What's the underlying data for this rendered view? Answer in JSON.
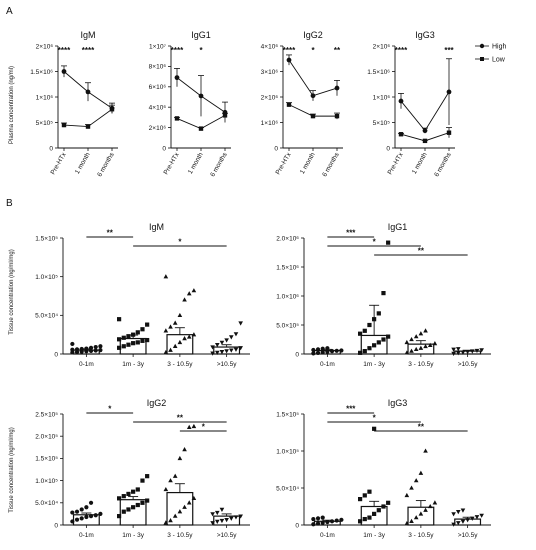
{
  "figure": {
    "panel_a": "A",
    "panel_b": "B",
    "legend": {
      "entries": [
        {
          "label": "High",
          "marker": "circle"
        },
        {
          "label": "Low",
          "marker": "square"
        }
      ]
    },
    "ylabel_top": "Plasma concentration (ng/ml)",
    "ylabel_bottom": "Tissue concentration (ng/ml/mg)"
  },
  "chart_data": [
    {
      "type": "line",
      "title": "IgM",
      "xlabel": "",
      "ylabel": "Plasma concentration (ng/ml)",
      "categories": [
        "Pre-HTx",
        "1 month",
        "6 months"
      ],
      "ylim": [
        0,
        2000000
      ],
      "yticks": [
        "0",
        "5×10⁵",
        "1×10⁶",
        "1.5×10⁶",
        "2×10⁶"
      ],
      "series": [
        {
          "name": "High",
          "values": [
            1500000,
            1100000,
            780000
          ],
          "errors": [
            110000,
            180000,
            100000
          ]
        },
        {
          "name": "Low",
          "values": [
            450000,
            420000,
            760000
          ],
          "errors": [
            40000,
            40000,
            80000
          ]
        }
      ],
      "significance": [
        "****",
        "****",
        ""
      ]
    },
    {
      "type": "line",
      "title": "IgG1",
      "xlabel": "",
      "ylabel": "Plasma concentration (ng/ml)",
      "categories": [
        "Pre-HTx",
        "1 month",
        "6 months"
      ],
      "ylim": [
        0,
        10000000
      ],
      "yticks": [
        "0",
        "2×10⁶",
        "4×10⁶",
        "6×10⁶",
        "8×10⁶",
        "1×10⁷"
      ],
      "series": [
        {
          "name": "High",
          "values": [
            6900000,
            5100000,
            3500000
          ],
          "errors": [
            900000,
            2000000,
            1000000
          ]
        },
        {
          "name": "Low",
          "values": [
            2900000,
            1900000,
            3200000
          ],
          "errors": [
            100000,
            100000,
            200000
          ]
        }
      ],
      "significance": [
        "****",
        "*",
        ""
      ]
    },
    {
      "type": "line",
      "title": "IgG2",
      "xlabel": "",
      "ylabel": "Plasma concentration (ng/ml)",
      "categories": [
        "Pre-HTx",
        "1 month",
        "6 months"
      ],
      "ylim": [
        0,
        4000000
      ],
      "yticks": [
        "0",
        "1×10⁶",
        "2×10⁶",
        "3×10⁶",
        "4×10⁶"
      ],
      "series": [
        {
          "name": "High",
          "values": [
            3450000,
            2050000,
            2350000
          ],
          "errors": [
            200000,
            200000,
            300000
          ]
        },
        {
          "name": "Low",
          "values": [
            1700000,
            1250000,
            1250000
          ],
          "errors": [
            80000,
            80000,
            120000
          ]
        }
      ],
      "significance": [
        "****",
        "*",
        "**"
      ]
    },
    {
      "type": "line",
      "title": "IgG3",
      "xlabel": "",
      "ylabel": "Plasma concentration (ng/ml)",
      "categories": [
        "Pre-HTx",
        "1 month",
        "6 months"
      ],
      "ylim": [
        0,
        2000000
      ],
      "yticks": [
        "0",
        "5×10⁵",
        "1×10⁶",
        "1.5×10⁶",
        "2×10⁶"
      ],
      "series": [
        {
          "name": "High",
          "values": [
            920000,
            340000,
            1100000
          ],
          "errors": [
            150000,
            50000,
            650000
          ]
        },
        {
          "name": "Low",
          "values": [
            270000,
            140000,
            300000
          ],
          "errors": [
            15000,
            10000,
            100000
          ]
        }
      ],
      "significance": [
        "****",
        "",
        "***"
      ]
    },
    {
      "type": "bar",
      "title": "IgM",
      "xlabel": "",
      "ylabel": "Tissue concentration (ng/ml/mg)",
      "categories": [
        "0-1m",
        "1m - 3y",
        "3 - 10.5y",
        ">10.5y"
      ],
      "markers": [
        "circle",
        "square",
        "triangle",
        "triangle-down"
      ],
      "values": [
        5000,
        20000,
        25000,
        9000
      ],
      "errors": [
        1500,
        4500,
        9000,
        3000
      ],
      "ylim": [
        0,
        150000
      ],
      "yticks": [
        "0",
        "5.0×10⁴",
        "1.0×10⁵",
        "1.5×10⁵"
      ],
      "points": [
        [
          2000,
          2500,
          3000,
          3500,
          4000,
          4500,
          5000,
          5500,
          6000,
          6500,
          7000,
          8000,
          9000,
          10000,
          13000
        ],
        [
          8000,
          10000,
          12000,
          14000,
          15000,
          17000,
          18000,
          19000,
          21000,
          23000,
          25000,
          28000,
          32000,
          38000,
          45000
        ],
        [
          2000,
          5000,
          10000,
          15000,
          20000,
          22000,
          25000,
          30000,
          35000,
          40000,
          50000,
          70000,
          78000,
          82000,
          100000
        ],
        [
          1000,
          2000,
          3000,
          4000,
          5000,
          6000,
          8000,
          9000,
          12000,
          15000,
          18000,
          22000,
          26000,
          40000
        ]
      ],
      "brackets": [
        {
          "from": 0,
          "to": 1,
          "label": "**"
        },
        {
          "from": 1,
          "to": 3,
          "label": "*"
        }
      ]
    },
    {
      "type": "bar",
      "title": "IgG1",
      "xlabel": "",
      "ylabel": "Tissue concentration (ng/ml/mg)",
      "categories": [
        "0-1m",
        "1m - 3y",
        "3 - 10.5y",
        ">10.5y"
      ],
      "markers": [
        "circle",
        "square",
        "triangle",
        "triangle-down"
      ],
      "values": [
        60000,
        320000,
        170000,
        50000
      ],
      "errors": [
        20000,
        520000,
        60000,
        15000
      ],
      "ylim": [
        0,
        2000000
      ],
      "yticks": [
        "0",
        "5.0×10⁵",
        "1.0×10⁶",
        "1.5×10⁶",
        "2.0×10⁶"
      ],
      "points": [
        [
          10000,
          20000,
          30000,
          40000,
          50000,
          55000,
          60000,
          70000,
          80000,
          90000,
          100000
        ],
        [
          20000,
          50000,
          100000,
          150000,
          200000,
          250000,
          300000,
          350000,
          400000,
          500000,
          600000,
          700000,
          1050000,
          1920000
        ],
        [
          20000,
          50000,
          80000,
          100000,
          130000,
          150000,
          180000,
          200000,
          250000,
          300000,
          350000,
          400000
        ],
        [
          10000,
          20000,
          30000,
          40000,
          50000,
          60000,
          70000,
          80000,
          90000
        ]
      ],
      "brackets": [
        {
          "from": 0,
          "to": 1,
          "label": "***"
        },
        {
          "from": 0,
          "to": 2,
          "label": "*"
        },
        {
          "from": 1,
          "to": 3,
          "label": "**"
        }
      ]
    },
    {
      "type": "bar",
      "title": "IgG2",
      "xlabel": "",
      "ylabel": "Tissue concentration (ng/ml/mg)",
      "categories": [
        "0-1m",
        "1m - 3y",
        "3 - 10.5y",
        ">10.5y"
      ],
      "markers": [
        "circle",
        "square",
        "triangle",
        "triangle-down"
      ],
      "values": [
        23000,
        57000,
        73000,
        20000
      ],
      "errors": [
        4000,
        7000,
        20000,
        5000
      ],
      "ylim": [
        0,
        250000
      ],
      "yticks": [
        "0",
        "5.0×10⁴",
        "1.0×10⁵",
        "1.5×10⁵",
        "2.0×10⁵",
        "2.5×10⁵"
      ],
      "points": [
        [
          8000,
          12000,
          15000,
          18000,
          20000,
          22000,
          25000,
          28000,
          30000,
          35000,
          40000,
          50000
        ],
        [
          20000,
          30000,
          35000,
          40000,
          45000,
          50000,
          55000,
          60000,
          65000,
          70000,
          75000,
          80000,
          100000,
          110000
        ],
        [
          5000,
          10000,
          20000,
          30000,
          40000,
          50000,
          60000,
          80000,
          100000,
          110000,
          150000,
          170000,
          220000,
          222000
        ],
        [
          5000,
          8000,
          10000,
          12000,
          15000,
          18000,
          20000,
          25000,
          28000,
          35000
        ]
      ],
      "brackets": [
        {
          "from": 0,
          "to": 1,
          "label": "*"
        },
        {
          "from": 1,
          "to": 3,
          "label": "**"
        },
        {
          "from": 2,
          "to": 3,
          "label": "*"
        }
      ]
    },
    {
      "type": "bar",
      "title": "IgG3",
      "xlabel": "",
      "ylabel": "Tissue concentration (ng/ml/mg)",
      "categories": [
        "0-1m",
        "1m - 3y",
        "3 - 10.5y",
        ">10.5y"
      ],
      "markers": [
        "circle",
        "square",
        "triangle",
        "triangle-down"
      ],
      "values": [
        5000,
        25000,
        24000,
        8000
      ],
      "errors": [
        1500,
        7000,
        9000,
        2500
      ],
      "ylim": [
        0,
        150000
      ],
      "yticks": [
        "0",
        "5.0×10⁴",
        "1.0×10⁵",
        "1.5×10⁵"
      ],
      "points": [
        [
          1000,
          2000,
          3000,
          4000,
          5000,
          6000,
          7000,
          8000,
          9000,
          10000
        ],
        [
          5000,
          8000,
          10000,
          15000,
          20000,
          25000,
          30000,
          35000,
          40000,
          45000,
          130000
        ],
        [
          2000,
          5000,
          10000,
          15000,
          20000,
          25000,
          30000,
          40000,
          50000,
          60000,
          70000,
          100000
        ],
        [
          1000,
          3000,
          5000,
          7000,
          9000,
          11000,
          13000,
          15000,
          18000,
          20000
        ]
      ],
      "brackets": [
        {
          "from": 0,
          "to": 1,
          "label": "***"
        },
        {
          "from": 0,
          "to": 2,
          "label": "*"
        },
        {
          "from": 1,
          "to": 3,
          "label": "**"
        }
      ]
    }
  ]
}
